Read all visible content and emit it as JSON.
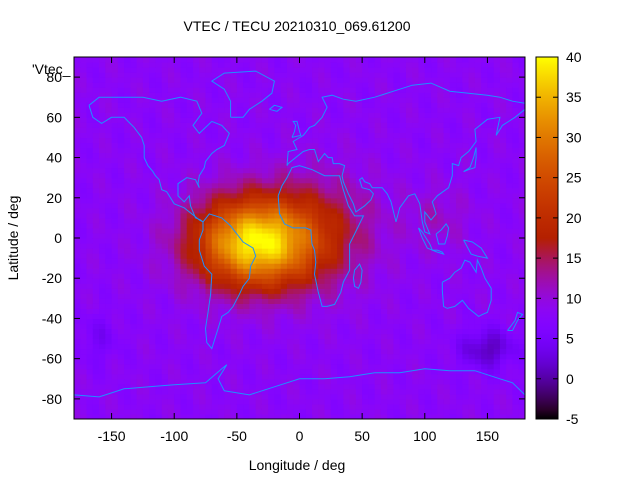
{
  "chart_data": {
    "type": "heatmap",
    "title": "VTEC / TECU 20210310_069.61200",
    "xlabel": "Longitude / deg",
    "ylabel": "Latitude / deg",
    "xlim": [
      -180,
      180
    ],
    "ylim": [
      -90,
      90
    ],
    "x_ticks": [
      -150,
      -100,
      -50,
      0,
      50,
      100,
      150
    ],
    "y_ticks": [
      -80,
      -60,
      -40,
      -20,
      0,
      20,
      40,
      60,
      80
    ],
    "colorbar": {
      "range": [
        -5,
        40
      ],
      "ticks": [
        -5,
        0,
        5,
        10,
        15,
        20,
        25,
        30,
        35,
        40
      ],
      "palette": "gnuplot black-purple-red-yellow"
    },
    "key_label": "'Vtec_",
    "peak": {
      "lon": -35,
      "lat": -2,
      "value": 39
    },
    "background_value": 8,
    "overlay": "coastlines",
    "overlay_color": "#1e90ff"
  }
}
